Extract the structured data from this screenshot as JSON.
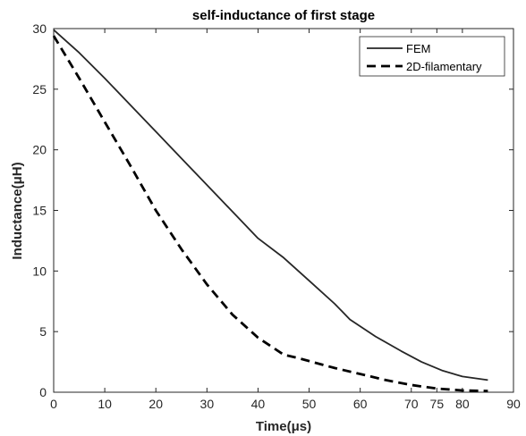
{
  "chart_data": {
    "type": "line",
    "title": "self-inductance of first stage",
    "xlabel": "Time(μs)",
    "ylabel": "Inductance(μH)",
    "xlim": [
      0,
      90
    ],
    "ylim": [
      0,
      30
    ],
    "xticks": [
      0,
      10,
      20,
      30,
      40,
      50,
      60,
      70,
      75,
      80,
      90
    ],
    "yticks": [
      0,
      5,
      10,
      15,
      20,
      25,
      30
    ],
    "grid": false,
    "legend_position": "top-right",
    "series": [
      {
        "name": "FEM",
        "style": "solid",
        "color": "#262626",
        "x": [
          0,
          5,
          10,
          15,
          20,
          25,
          30,
          35,
          40,
          45,
          50,
          55,
          58,
          63,
          68,
          72,
          76,
          80,
          85
        ],
        "y": [
          29.9,
          28.0,
          25.9,
          23.7,
          21.5,
          19.3,
          17.1,
          14.9,
          12.7,
          11.1,
          9.2,
          7.3,
          6.0,
          4.6,
          3.4,
          2.5,
          1.8,
          1.3,
          1.0
        ]
      },
      {
        "name": "2D-filamentary",
        "style": "dashed",
        "color": "#000000",
        "x": [
          0,
          5,
          10,
          15,
          20,
          25,
          30,
          35,
          40,
          45,
          48,
          55,
          60,
          65,
          70,
          75,
          80,
          85
        ],
        "y": [
          29.4,
          25.9,
          22.3,
          18.7,
          15.0,
          11.8,
          8.9,
          6.4,
          4.5,
          3.1,
          2.8,
          2.0,
          1.5,
          1.0,
          0.6,
          0.3,
          0.15,
          0.1
        ]
      }
    ]
  }
}
